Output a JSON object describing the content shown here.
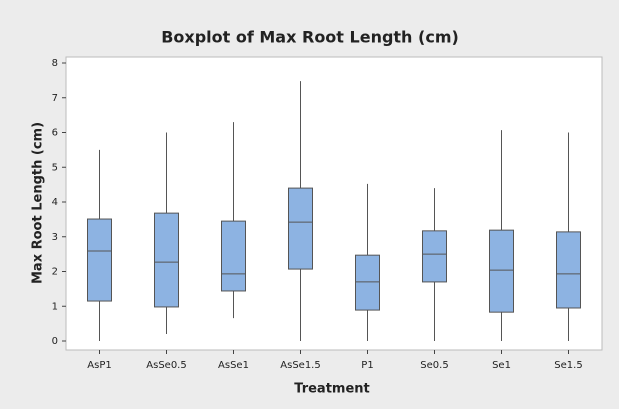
{
  "chart_data": {
    "type": "boxplot",
    "title": "Boxplot of Max Root Length (cm)",
    "x_label": "Treatment",
    "y_label": "Max Root Length (cm)",
    "categories": [
      "AsP1",
      "AsSe0.5",
      "AsSe1",
      "AsSe1.5",
      "P1",
      "Se0.5",
      "Se1",
      "Se1.5"
    ],
    "min": [
      0,
      0.2,
      0.66,
      0,
      0,
      0,
      0,
      0
    ],
    "q1": [
      1.15,
      0.98,
      1.44,
      2.07,
      0.89,
      1.7,
      0.83,
      0.95
    ],
    "median": [
      2.59,
      2.27,
      1.93,
      3.42,
      1.7,
      2.5,
      2.04,
      1.93
    ],
    "q3": [
      3.51,
      3.68,
      3.45,
      4.4,
      2.47,
      3.17,
      3.19,
      3.14
    ],
    "max": [
      5.5,
      6.0,
      6.3,
      7.48,
      4.52,
      4.4,
      6.07,
      6.0
    ],
    "color": "#8db3e2",
    "ylim": [
      0,
      8
    ],
    "yticks": [
      0,
      1,
      2,
      3,
      4,
      5,
      6,
      7,
      8
    ]
  }
}
